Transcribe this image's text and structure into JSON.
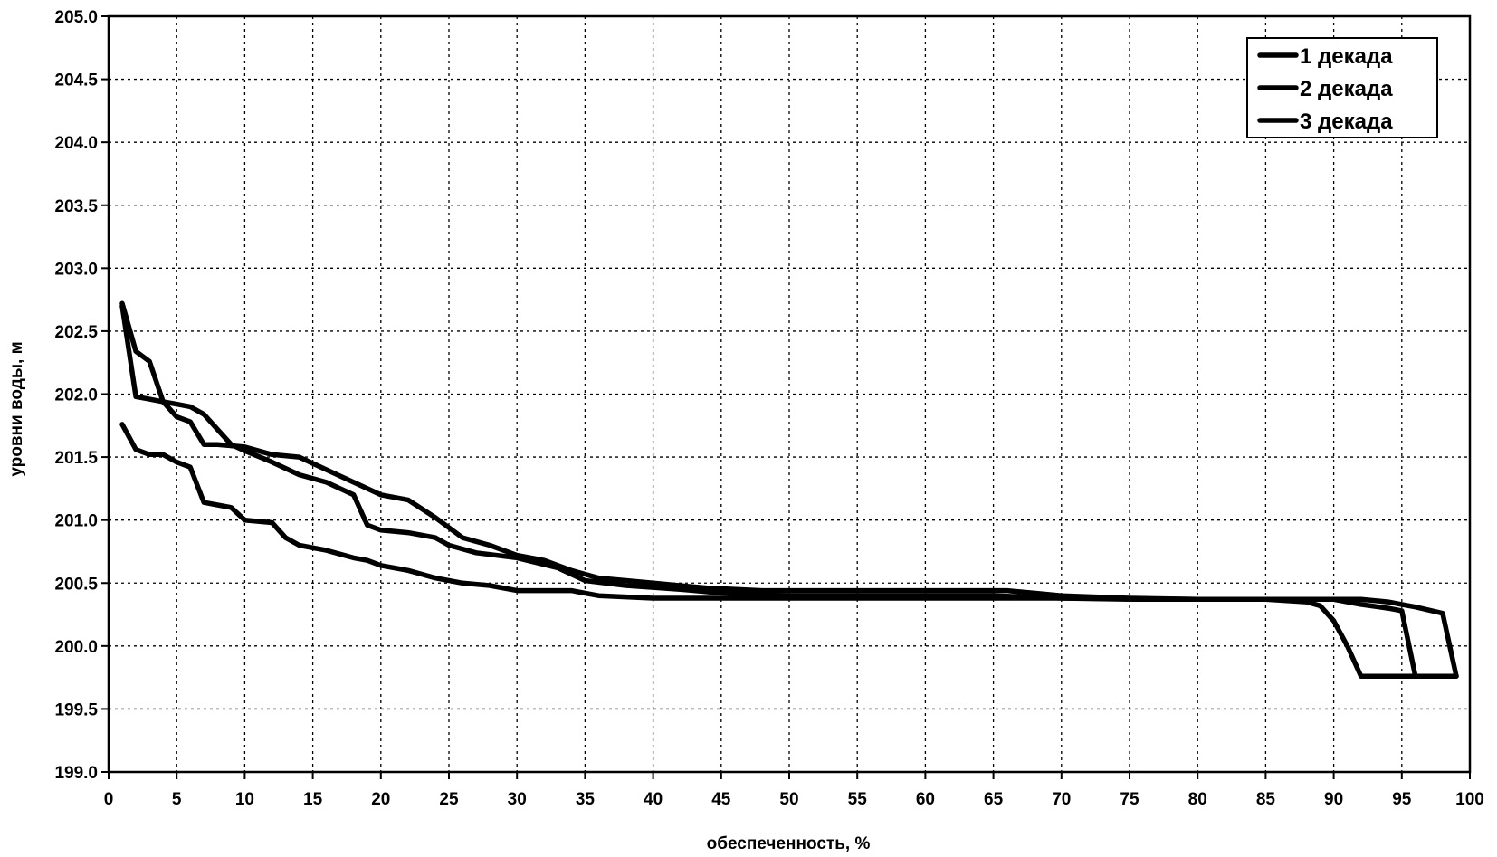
{
  "chart_data": {
    "type": "line",
    "title": "",
    "xlabel": "обеспеченность, %",
    "ylabel": "уровни воды, м",
    "xlim": [
      0,
      100
    ],
    "ylim": [
      199.0,
      205.0
    ],
    "x_ticks": [
      "0",
      "5",
      "10",
      "15",
      "20",
      "25",
      "30",
      "35",
      "40",
      "45",
      "50",
      "55",
      "60",
      "65",
      "70",
      "75",
      "80",
      "85",
      "90",
      "95",
      "100"
    ],
    "y_ticks": [
      "205.0",
      "204.5",
      "204.0",
      "203.5",
      "203.0",
      "202.5",
      "202.0",
      "201.5",
      "201.0",
      "200.5",
      "200.0",
      "199.5",
      "199.0"
    ],
    "grid": true,
    "legend_position": "top-right",
    "series": [
      {
        "name": "1 декада",
        "x": [
          1,
          2,
          3,
          4,
          5,
          6,
          7,
          8,
          9,
          10,
          12,
          14,
          16,
          18,
          19,
          20,
          22,
          24,
          25,
          27,
          30,
          33,
          35,
          38,
          42,
          45,
          50,
          60,
          65,
          70,
          75,
          80,
          85,
          88,
          89,
          90,
          91,
          92,
          95,
          96
        ],
        "y": [
          202.7,
          201.98,
          201.96,
          201.94,
          201.92,
          201.9,
          201.84,
          201.72,
          201.6,
          201.55,
          201.46,
          201.36,
          201.3,
          201.2,
          200.96,
          200.92,
          200.9,
          200.86,
          200.8,
          200.74,
          200.7,
          200.62,
          200.52,
          200.48,
          200.45,
          200.42,
          200.4,
          200.4,
          200.4,
          200.38,
          200.37,
          200.37,
          200.37,
          200.35,
          200.32,
          200.2,
          200.0,
          199.76,
          199.76,
          199.76
        ]
      },
      {
        "name": "2 декада",
        "x": [
          1,
          2,
          3,
          4,
          5,
          6,
          7,
          8,
          10,
          12,
          14,
          16,
          18,
          20,
          22,
          24,
          26,
          28,
          30,
          32,
          34,
          36,
          40,
          44,
          48,
          55,
          60,
          66,
          70,
          75,
          80,
          85,
          88,
          90,
          92,
          94,
          95,
          96,
          98,
          99
        ],
        "y": [
          202.72,
          202.34,
          202.26,
          201.94,
          201.82,
          201.78,
          201.6,
          201.6,
          201.58,
          201.52,
          201.5,
          201.4,
          201.3,
          201.2,
          201.16,
          201.02,
          200.86,
          200.8,
          200.72,
          200.68,
          200.6,
          200.54,
          200.5,
          200.46,
          200.44,
          200.44,
          200.44,
          200.44,
          200.4,
          200.38,
          200.37,
          200.37,
          200.37,
          200.37,
          200.37,
          200.35,
          200.33,
          200.31,
          200.26,
          199.76
        ]
      },
      {
        "name": "3 декада",
        "x": [
          1,
          2,
          3,
          4,
          5,
          6,
          7,
          8,
          9,
          10,
          12,
          13,
          14,
          16,
          18,
          19,
          20,
          22,
          24,
          26,
          28,
          30,
          34,
          36,
          40,
          50,
          60,
          70,
          80,
          85,
          88,
          90,
          92,
          94,
          95,
          96,
          98,
          99
        ],
        "y": [
          201.76,
          201.56,
          201.52,
          201.52,
          201.46,
          201.42,
          201.14,
          201.12,
          201.1,
          201.0,
          200.98,
          200.86,
          200.8,
          200.76,
          200.7,
          200.68,
          200.64,
          200.6,
          200.54,
          200.5,
          200.48,
          200.44,
          200.44,
          200.4,
          200.38,
          200.38,
          200.38,
          200.38,
          200.37,
          200.37,
          200.37,
          200.37,
          200.33,
          200.3,
          200.28,
          199.76,
          199.76,
          199.76
        ]
      }
    ]
  }
}
